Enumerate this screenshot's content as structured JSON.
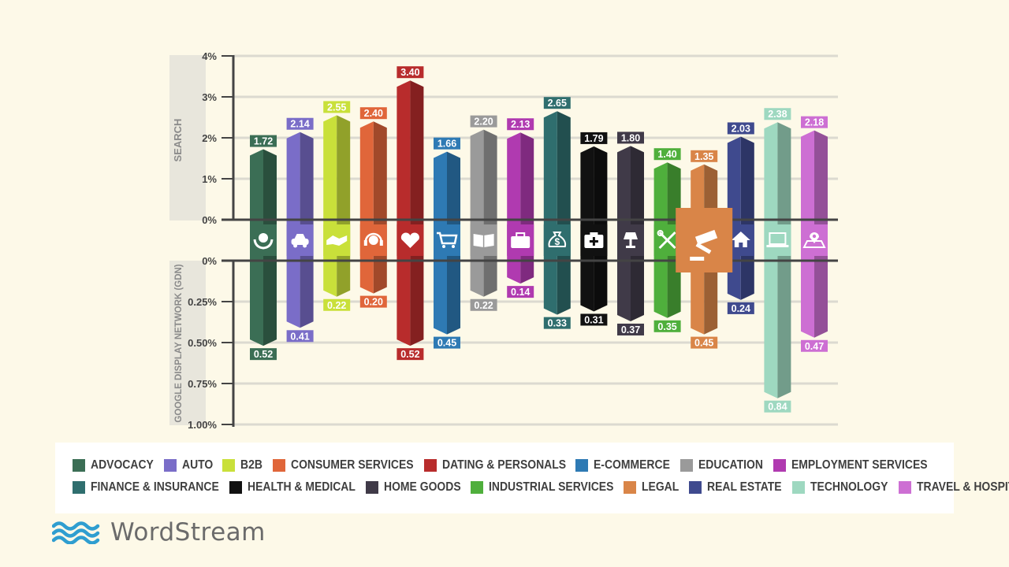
{
  "chart_data": {
    "type": "bar",
    "top_axis_label": "SEARCH",
    "bottom_axis_label": "GOOGLE DISPLAY NETWORK (GDN)",
    "top_ticks": [
      "4%",
      "3%",
      "2%",
      "1%",
      "0%"
    ],
    "bottom_ticks": [
      "0%",
      "0.25%",
      "0.50%",
      "0.75%",
      "1.00%"
    ],
    "top_ylim": [
      0,
      4
    ],
    "bottom_ylim": [
      0,
      1.0
    ],
    "categories": [
      "ADVOCACY",
      "AUTO",
      "B2B",
      "CONSUMER SERVICES",
      "DATING & PERSONALS",
      "E-COMMERCE",
      "EDUCATION",
      "EMPLOYMENT SERVICES",
      "FINANCE & INSURANCE",
      "HEALTH & MEDICAL",
      "HOME GOODS",
      "INDUSTRIAL SERVICES",
      "LEGAL",
      "REAL ESTATE",
      "TECHNOLOGY",
      "TRAVEL & HOSPITALITY"
    ],
    "search_values": [
      "1.72",
      "2.14",
      "2.55",
      "2.40",
      "3.40",
      "1.66",
      "2.20",
      "2.13",
      "2.65",
      "1.79",
      "1.80",
      "1.40",
      "1.35",
      "2.03",
      "2.38",
      "2.18"
    ],
    "gdn_values": [
      "0.52",
      "0.41",
      "0.22",
      "0.20",
      "0.52",
      "0.45",
      "0.22",
      "0.14",
      "0.33",
      "0.31",
      "0.37",
      "0.35",
      "0.45",
      "0.24",
      "0.84",
      "0.47"
    ],
    "colors": [
      "#3b6e55",
      "#7a6dc8",
      "#c9e03a",
      "#e0663a",
      "#b82c2c",
      "#2e7ab4",
      "#9a9a9a",
      "#b03ab0",
      "#2f6e6e",
      "#111111",
      "#403a48",
      "#4faf3c",
      "#d98548",
      "#3f4a8e",
      "#9ed8c0",
      "#cd6fd3"
    ],
    "icons": [
      "globe-hands-icon",
      "car-icon",
      "handshake-icon",
      "headset-icon",
      "heart-icon",
      "cart-icon",
      "book-icon",
      "briefcase-icon",
      "money-bag-icon",
      "medical-kit-icon",
      "lamp-icon",
      "tools-icon",
      "gavel-icon",
      "house-icon",
      "laptop-icon",
      "map-pin-icon"
    ],
    "highlighted": "LEGAL"
  },
  "legend": {
    "row1": [
      {
        "label": "ADVOCACY",
        "color": "#3b6e55"
      },
      {
        "label": "AUTO",
        "color": "#7a6dc8"
      },
      {
        "label": "B2B",
        "color": "#c9e03a"
      },
      {
        "label": "CONSUMER SERVICES",
        "color": "#e0663a"
      },
      {
        "label": "DATING & PERSONALS",
        "color": "#b82c2c"
      },
      {
        "label": "E-COMMERCE",
        "color": "#2e7ab4"
      },
      {
        "label": "EDUCATION",
        "color": "#9a9a9a"
      },
      {
        "label": "EMPLOYMENT SERVICES",
        "color": "#b03ab0"
      }
    ],
    "row2": [
      {
        "label": "FINANCE & INSURANCE",
        "color": "#2f6e6e"
      },
      {
        "label": "HEALTH & MEDICAL",
        "color": "#111111"
      },
      {
        "label": "HOME GOODS",
        "color": "#403a48"
      },
      {
        "label": "INDUSTRIAL SERVICES",
        "color": "#4faf3c"
      },
      {
        "label": "LEGAL",
        "color": "#d98548"
      },
      {
        "label": "REAL ESTATE",
        "color": "#3f4a8e"
      },
      {
        "label": "TECHNOLOGY",
        "color": "#9ed8c0"
      },
      {
        "label": "TRAVEL & HOSPITALITY",
        "color": "#cd6fd3"
      }
    ]
  },
  "brand": {
    "name": "WordStream",
    "color": "#2f9ed0"
  }
}
